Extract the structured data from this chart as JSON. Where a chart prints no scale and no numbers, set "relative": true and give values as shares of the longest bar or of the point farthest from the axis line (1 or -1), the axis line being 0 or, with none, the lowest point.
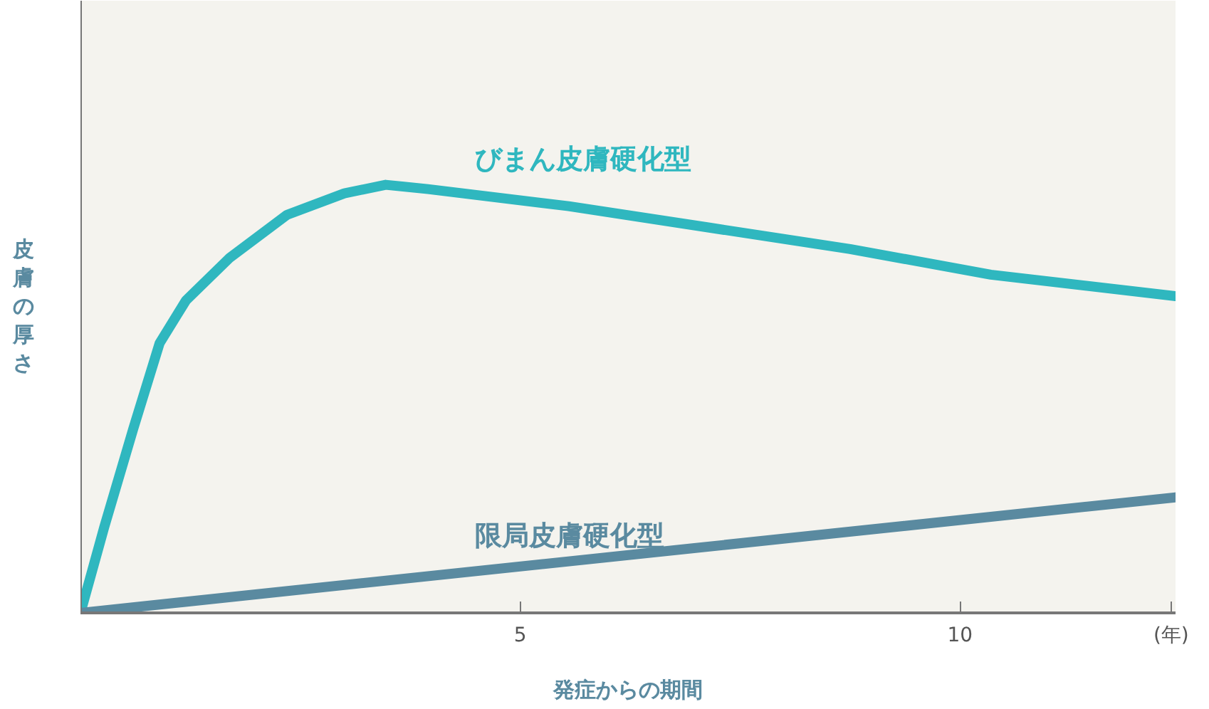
{
  "chart_data": {
    "type": "line",
    "relative": true,
    "xlabel": "発症からの期間",
    "ylabel": "皮膚の厚さ",
    "xlim": [
      0,
      12.45
    ],
    "xticks": [
      5,
      10,
      {
        "value": 12.4,
        "label": "(年)"
      }
    ],
    "grid": false,
    "marker": "none",
    "line_style": "solid",
    "series": [
      {
        "name": "びまん皮膚硬化型",
        "color": "#2fb7bf",
        "x": [
          0,
          0.27,
          0.6,
          0.9,
          1.2,
          1.7,
          2.35,
          3.0,
          3.47,
          3.95,
          5.55,
          7.15,
          8.75,
          10.35,
          12.45
        ],
        "values": [
          0,
          0.2,
          0.43,
          0.63,
          0.73,
          0.83,
          0.93,
          0.98,
          1.0,
          0.99,
          0.95,
          0.9,
          0.85,
          0.79,
          0.74
        ]
      },
      {
        "name": "限局皮膚硬化型",
        "color": "#5a8aa0",
        "x": [
          0,
          12.45
        ],
        "values": [
          0,
          0.27
        ]
      }
    ]
  }
}
